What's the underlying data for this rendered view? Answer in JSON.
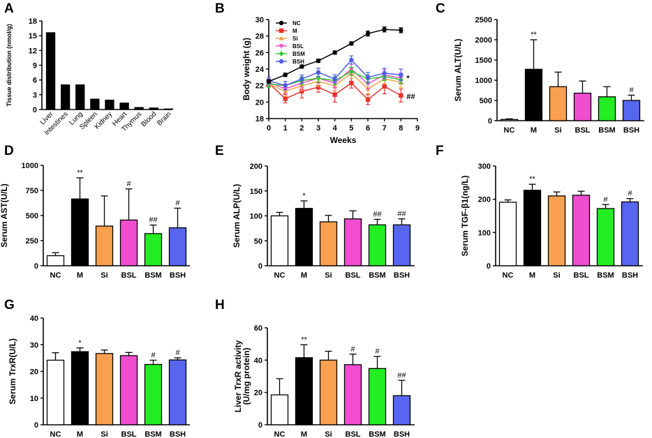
{
  "chart_data": [
    {
      "panel": "A",
      "type": "bar",
      "ylabel": "Tissue distribution (nmol/g)",
      "ylim": [
        0,
        18
      ],
      "yticks": [
        0,
        3,
        6,
        9,
        12,
        15,
        18
      ],
      "categories": [
        "Liver",
        "Intestines",
        "Lung",
        "Spleen",
        "Kidney",
        "Heart",
        "Thymus",
        "Blood",
        "Brain"
      ],
      "values": [
        15.6,
        5.0,
        5.0,
        2.1,
        1.9,
        1.3,
        0.4,
        0.3,
        0.1
      ]
    },
    {
      "panel": "B",
      "type": "line",
      "xlabel": "Weeks",
      "ylabel": "Body weight (g)",
      "xlim": [
        0,
        9
      ],
      "ylim": [
        18,
        30
      ],
      "xticks": [
        0,
        1,
        2,
        3,
        4,
        5,
        6,
        7,
        8,
        9
      ],
      "yticks": [
        18,
        20,
        22,
        24,
        26,
        28,
        30
      ],
      "x": [
        0,
        1,
        2,
        3,
        4,
        5,
        6,
        7,
        8
      ],
      "series": [
        {
          "name": "NC",
          "color": "#000000",
          "marker": "circle",
          "values": [
            22.5,
            23.3,
            24.3,
            25.0,
            26.0,
            27.1,
            28.3,
            28.8,
            28.7
          ],
          "errors": [
            0.2,
            0.2,
            0.2,
            0.2,
            0.2,
            0.2,
            0.3,
            0.3,
            0.3
          ]
        },
        {
          "name": "M",
          "color": "#e8322c",
          "marker": "square",
          "values": [
            22.3,
            20.4,
            21.3,
            21.8,
            20.9,
            22.3,
            20.3,
            21.9,
            20.8
          ],
          "errors": [
            0.4,
            0.5,
            0.8,
            0.6,
            0.9,
            0.6,
            0.6,
            0.9,
            0.8
          ]
        },
        {
          "name": "Si",
          "color": "#f5a447",
          "marker": "triangle",
          "values": [
            22.2,
            21.3,
            22.0,
            22.5,
            22.0,
            23.5,
            21.6,
            22.8,
            22.4
          ],
          "errors": [
            0.4,
            0.6,
            0.6,
            0.6,
            0.6,
            0.6,
            0.6,
            0.6,
            0.6
          ]
        },
        {
          "name": "BSL",
          "color": "#ef4ec8",
          "marker": "triangle-down",
          "values": [
            22.4,
            21.6,
            22.3,
            22.9,
            22.3,
            24.0,
            22.2,
            23.3,
            22.9
          ],
          "errors": [
            0.4,
            0.6,
            0.6,
            0.6,
            0.6,
            0.6,
            0.6,
            0.6,
            0.6
          ]
        },
        {
          "name": "BSM",
          "color": "#2ccb2c",
          "marker": "diamond",
          "values": [
            22.2,
            22.0,
            22.6,
            22.9,
            22.6,
            23.7,
            22.8,
            23.1,
            22.7
          ],
          "errors": [
            0.4,
            0.5,
            0.5,
            0.5,
            0.5,
            0.5,
            0.5,
            0.5,
            0.5
          ]
        },
        {
          "name": "BSH",
          "color": "#4f5de8",
          "marker": "circle",
          "values": [
            22.6,
            22.0,
            22.8,
            23.6,
            22.8,
            25.1,
            23.0,
            23.5,
            23.3
          ],
          "errors": [
            0.4,
            0.5,
            0.5,
            0.5,
            0.5,
            0.5,
            0.6,
            0.6,
            0.7
          ]
        }
      ],
      "annotations": [
        {
          "text": "*",
          "series": "BSH"
        },
        {
          "text": "##",
          "series": "M"
        }
      ]
    },
    {
      "panel": "C",
      "type": "bar",
      "ylabel": "Serum ALT(U/L)",
      "ylim": [
        0,
        2500
      ],
      "yticks": [
        0,
        500,
        1000,
        1500,
        2000,
        2500
      ],
      "categories": [
        "NC",
        "M",
        "Si",
        "BSL",
        "BSM",
        "BSH"
      ],
      "values": [
        30,
        1270,
        840,
        680,
        590,
        500
      ],
      "errors": [
        15,
        730,
        360,
        300,
        250,
        130
      ],
      "significance": [
        "",
        "**",
        "",
        "",
        "",
        "#"
      ]
    },
    {
      "panel": "D",
      "type": "bar",
      "ylabel": "Serum AST(U/L)",
      "ylim": [
        0,
        1000
      ],
      "yticks": [
        0,
        250,
        500,
        750,
        1000
      ],
      "categories": [
        "NC",
        "M",
        "Si",
        "BSL",
        "BSM",
        "BSH"
      ],
      "values": [
        100,
        665,
        395,
        455,
        320,
        378
      ],
      "errors": [
        30,
        210,
        300,
        310,
        85,
        195
      ],
      "significance": [
        "",
        "**",
        "",
        "#",
        "##",
        "#"
      ]
    },
    {
      "panel": "E",
      "type": "bar",
      "ylabel": "Serum ALP(U/L)",
      "ylim": [
        0,
        200
      ],
      "yticks": [
        0,
        50,
        100,
        150,
        200
      ],
      "categories": [
        "NC",
        "M",
        "Si",
        "BSL",
        "BSM",
        "BSH"
      ],
      "values": [
        100,
        115,
        88,
        94,
        82,
        82
      ],
      "errors": [
        7,
        15,
        13,
        16,
        11,
        12
      ],
      "significance": [
        "",
        "*",
        "",
        "",
        "##",
        "##"
      ]
    },
    {
      "panel": "F",
      "type": "bar",
      "ylabel": "Serum TGF-β1(ng/L)",
      "ylim": [
        0,
        300
      ],
      "yticks": [
        0,
        100,
        200,
        300
      ],
      "categories": [
        "NC",
        "M",
        "Si",
        "BSL",
        "BSM",
        "BSH"
      ],
      "values": [
        191,
        227,
        210,
        212,
        172,
        192
      ],
      "errors": [
        7,
        18,
        12,
        12,
        12,
        10
      ],
      "significance": [
        "",
        "**",
        "",
        "",
        "#",
        "#"
      ]
    },
    {
      "panel": "G",
      "type": "bar",
      "ylabel": "Serum TrxR(U/L)",
      "ylim": [
        0,
        40
      ],
      "yticks": [
        0,
        10,
        20,
        30,
        40
      ],
      "categories": [
        "NC",
        "M",
        "Si",
        "BSL",
        "BSM",
        "BSH"
      ],
      "values": [
        24.2,
        27.4,
        26.7,
        25.9,
        22.6,
        24.3
      ],
      "errors": [
        2.8,
        1.4,
        1.3,
        1.2,
        1.6,
        0.8
      ],
      "significance": [
        "",
        "*",
        "",
        "",
        "#",
        "#"
      ]
    },
    {
      "panel": "H",
      "type": "bar",
      "ylabel_lines": [
        "Liver TrxR activity",
        "(U/mg protein)"
      ],
      "ylim": [
        0,
        60
      ],
      "yticks": [
        0,
        20,
        40,
        60
      ],
      "categories": [
        "NC",
        "M",
        "Si",
        "BSL",
        "BSM",
        "BSH"
      ],
      "values": [
        18.5,
        41.5,
        40.0,
        37.2,
        34.8,
        18.0
      ],
      "errors": [
        10,
        8,
        5.5,
        6.5,
        7.5,
        9.5
      ],
      "significance": [
        "",
        "**",
        "",
        "#",
        "#",
        "##"
      ]
    }
  ],
  "group_colors": {
    "NC": "#ffffff",
    "M": "#000000",
    "Si": "#f9a04e",
    "BSL": "#ef4ed0",
    "BSM": "#22ee22",
    "BSH": "#5766ee"
  }
}
